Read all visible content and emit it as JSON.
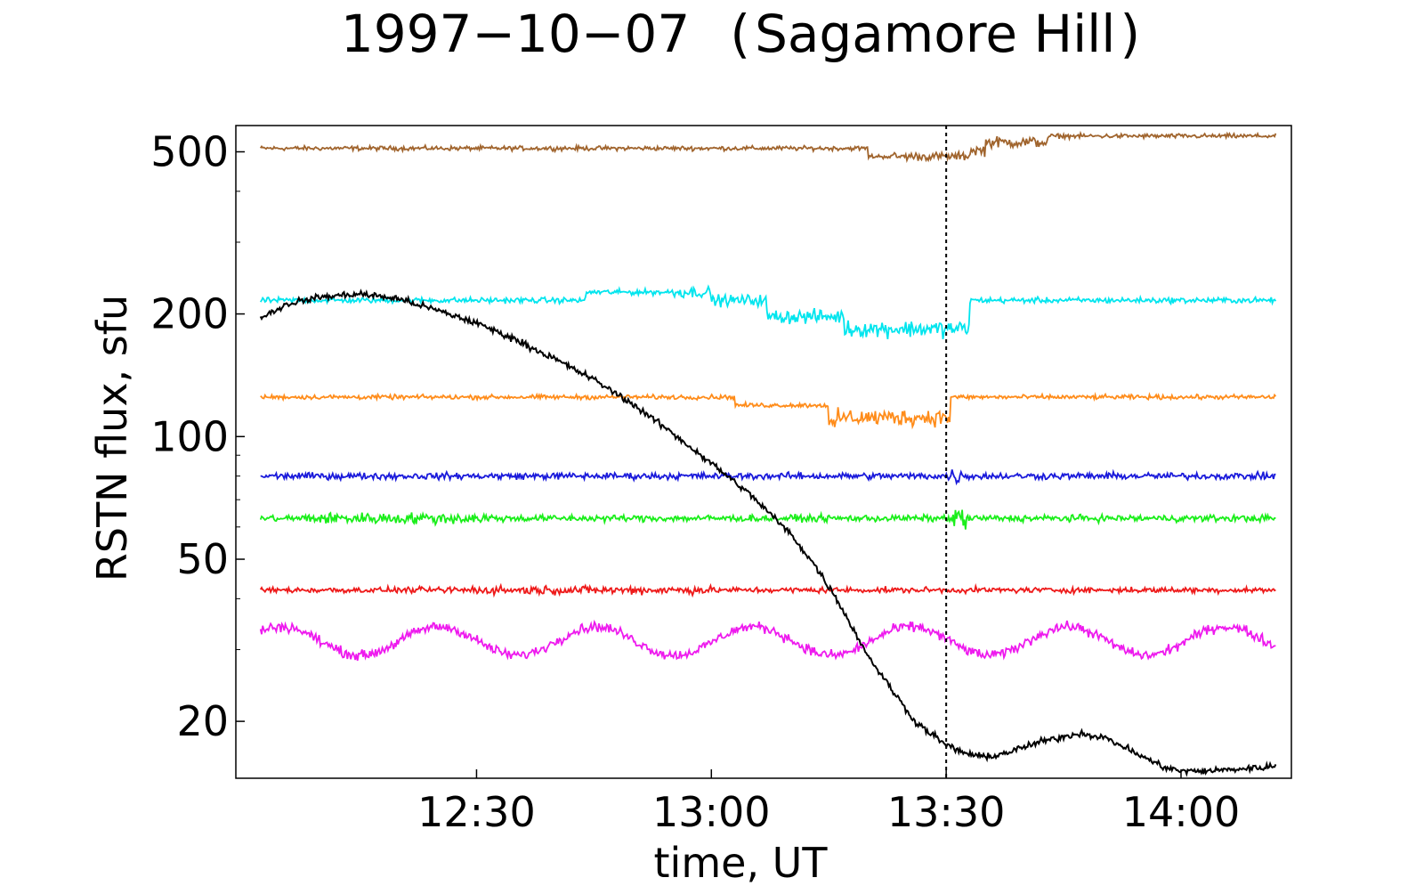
{
  "chart_data": {
    "type": "line",
    "title_date": "1997−10−07",
    "title_station_open": "(",
    "title_station": "Sagamore Hill",
    "title_station_close": ")",
    "xlabel": "time,  UT",
    "ylabel": "RSTN flux,  sfu",
    "y_scale": "log",
    "ylim": [
      14.5,
      580
    ],
    "x_ticks": [
      {
        "label": "12:30",
        "minutes": 750
      },
      {
        "label": "13:00",
        "minutes": 780
      },
      {
        "label": "13:30",
        "minutes": 810
      },
      {
        "label": "14:00",
        "minutes": 840
      }
    ],
    "xlim_minutes": [
      719.25,
      854.1
    ],
    "x_range_minutes": [
      722.4,
      852.1
    ],
    "y_ticks": [
      20,
      50,
      100,
      200,
      500
    ],
    "y_minor_ticks": [
      30,
      40,
      60,
      70,
      80,
      90,
      300,
      400
    ],
    "marker_time_minutes": 810,
    "marker_style": "dotted vertical line",
    "grid": false,
    "legend": "none",
    "series": [
      {
        "color": "#a0642d",
        "level": 510,
        "noise": 0.008,
        "features": [
          {
            "from": 800,
            "to": 815,
            "offset": -0.02
          },
          {
            "from": 803,
            "to": 814,
            "noise": 0.015
          },
          {
            "from": 813,
            "to": 823,
            "offset": 0.015,
            "noise": 0.02
          },
          {
            "from": 823,
            "to": 852.1,
            "offset": 0.03
          }
        ]
      },
      {
        "color": "#00e5ee",
        "level": 216,
        "noise": 0.01,
        "features": [
          {
            "from": 764,
            "to": 780,
            "offset": 0.02
          },
          {
            "from": 775,
            "to": 787,
            "noise": 0.02
          },
          {
            "from": 787,
            "to": 797,
            "offset": -0.04,
            "noise": 0.025
          },
          {
            "from": 797,
            "to": 813,
            "offset": -0.07,
            "noise": 0.03
          },
          {
            "from": 813,
            "to": 852.1,
            "offset": 0.0
          }
        ]
      },
      {
        "color": "#ff8c1a",
        "level": 125,
        "noise": 0.008,
        "features": [
          {
            "from": 783,
            "to": 796,
            "offset": -0.02
          },
          {
            "from": 795,
            "to": 810.5,
            "offset": -0.05,
            "noise": 0.03
          },
          {
            "from": 810.5,
            "to": 852.1,
            "offset": 0.0
          }
        ]
      },
      {
        "color": "#1a1adb",
        "level": 80,
        "noise": 0.012,
        "features": [
          {
            "from": 810,
            "to": 812,
            "noise": 0.03
          }
        ]
      },
      {
        "color": "#1aee1a",
        "level": 63,
        "noise": 0.012,
        "features": [
          {
            "from": 728,
            "to": 752,
            "noise": 0.02
          },
          {
            "from": 811,
            "to": 812.5,
            "noise": 0.05
          }
        ]
      },
      {
        "color": "#ee1a1a",
        "level": 42,
        "noise": 0.01,
        "features": [
          {
            "from": 746,
            "to": 780,
            "noise": 0.015
          }
        ]
      },
      {
        "color": "#ee1aee",
        "level": 31.5,
        "noise": 0.018,
        "features": [
          {
            "from": 720,
            "to": 852.1,
            "wave": 0.035
          }
        ]
      },
      {
        "color": "#000000",
        "noise": 0.012,
        "profile": [
          [
            722.4,
            196
          ],
          [
            726,
            212
          ],
          [
            730,
            220
          ],
          [
            735,
            224
          ],
          [
            740,
            218
          ],
          [
            745,
            204
          ],
          [
            750,
            190
          ],
          [
            755,
            173
          ],
          [
            760,
            155
          ],
          [
            765,
            138
          ],
          [
            770,
            120
          ],
          [
            775,
            102
          ],
          [
            780,
            86
          ],
          [
            785,
            72
          ],
          [
            790,
            58
          ],
          [
            793,
            49
          ],
          [
            796,
            40
          ],
          [
            798,
            34
          ],
          [
            800,
            29
          ],
          [
            803,
            24
          ],
          [
            806,
            20
          ],
          [
            810,
            17.5
          ],
          [
            812,
            16.8
          ],
          [
            815,
            16.3
          ],
          [
            818,
            16.8
          ],
          [
            822,
            17.8
          ],
          [
            827,
            18.7
          ],
          [
            830,
            18.3
          ],
          [
            833,
            17.2
          ],
          [
            835,
            16.4
          ],
          [
            838,
            15.4
          ],
          [
            840,
            15.1
          ],
          [
            843,
            15.1
          ],
          [
            848,
            15.3
          ],
          [
            852.1,
            15.5
          ]
        ]
      }
    ]
  }
}
